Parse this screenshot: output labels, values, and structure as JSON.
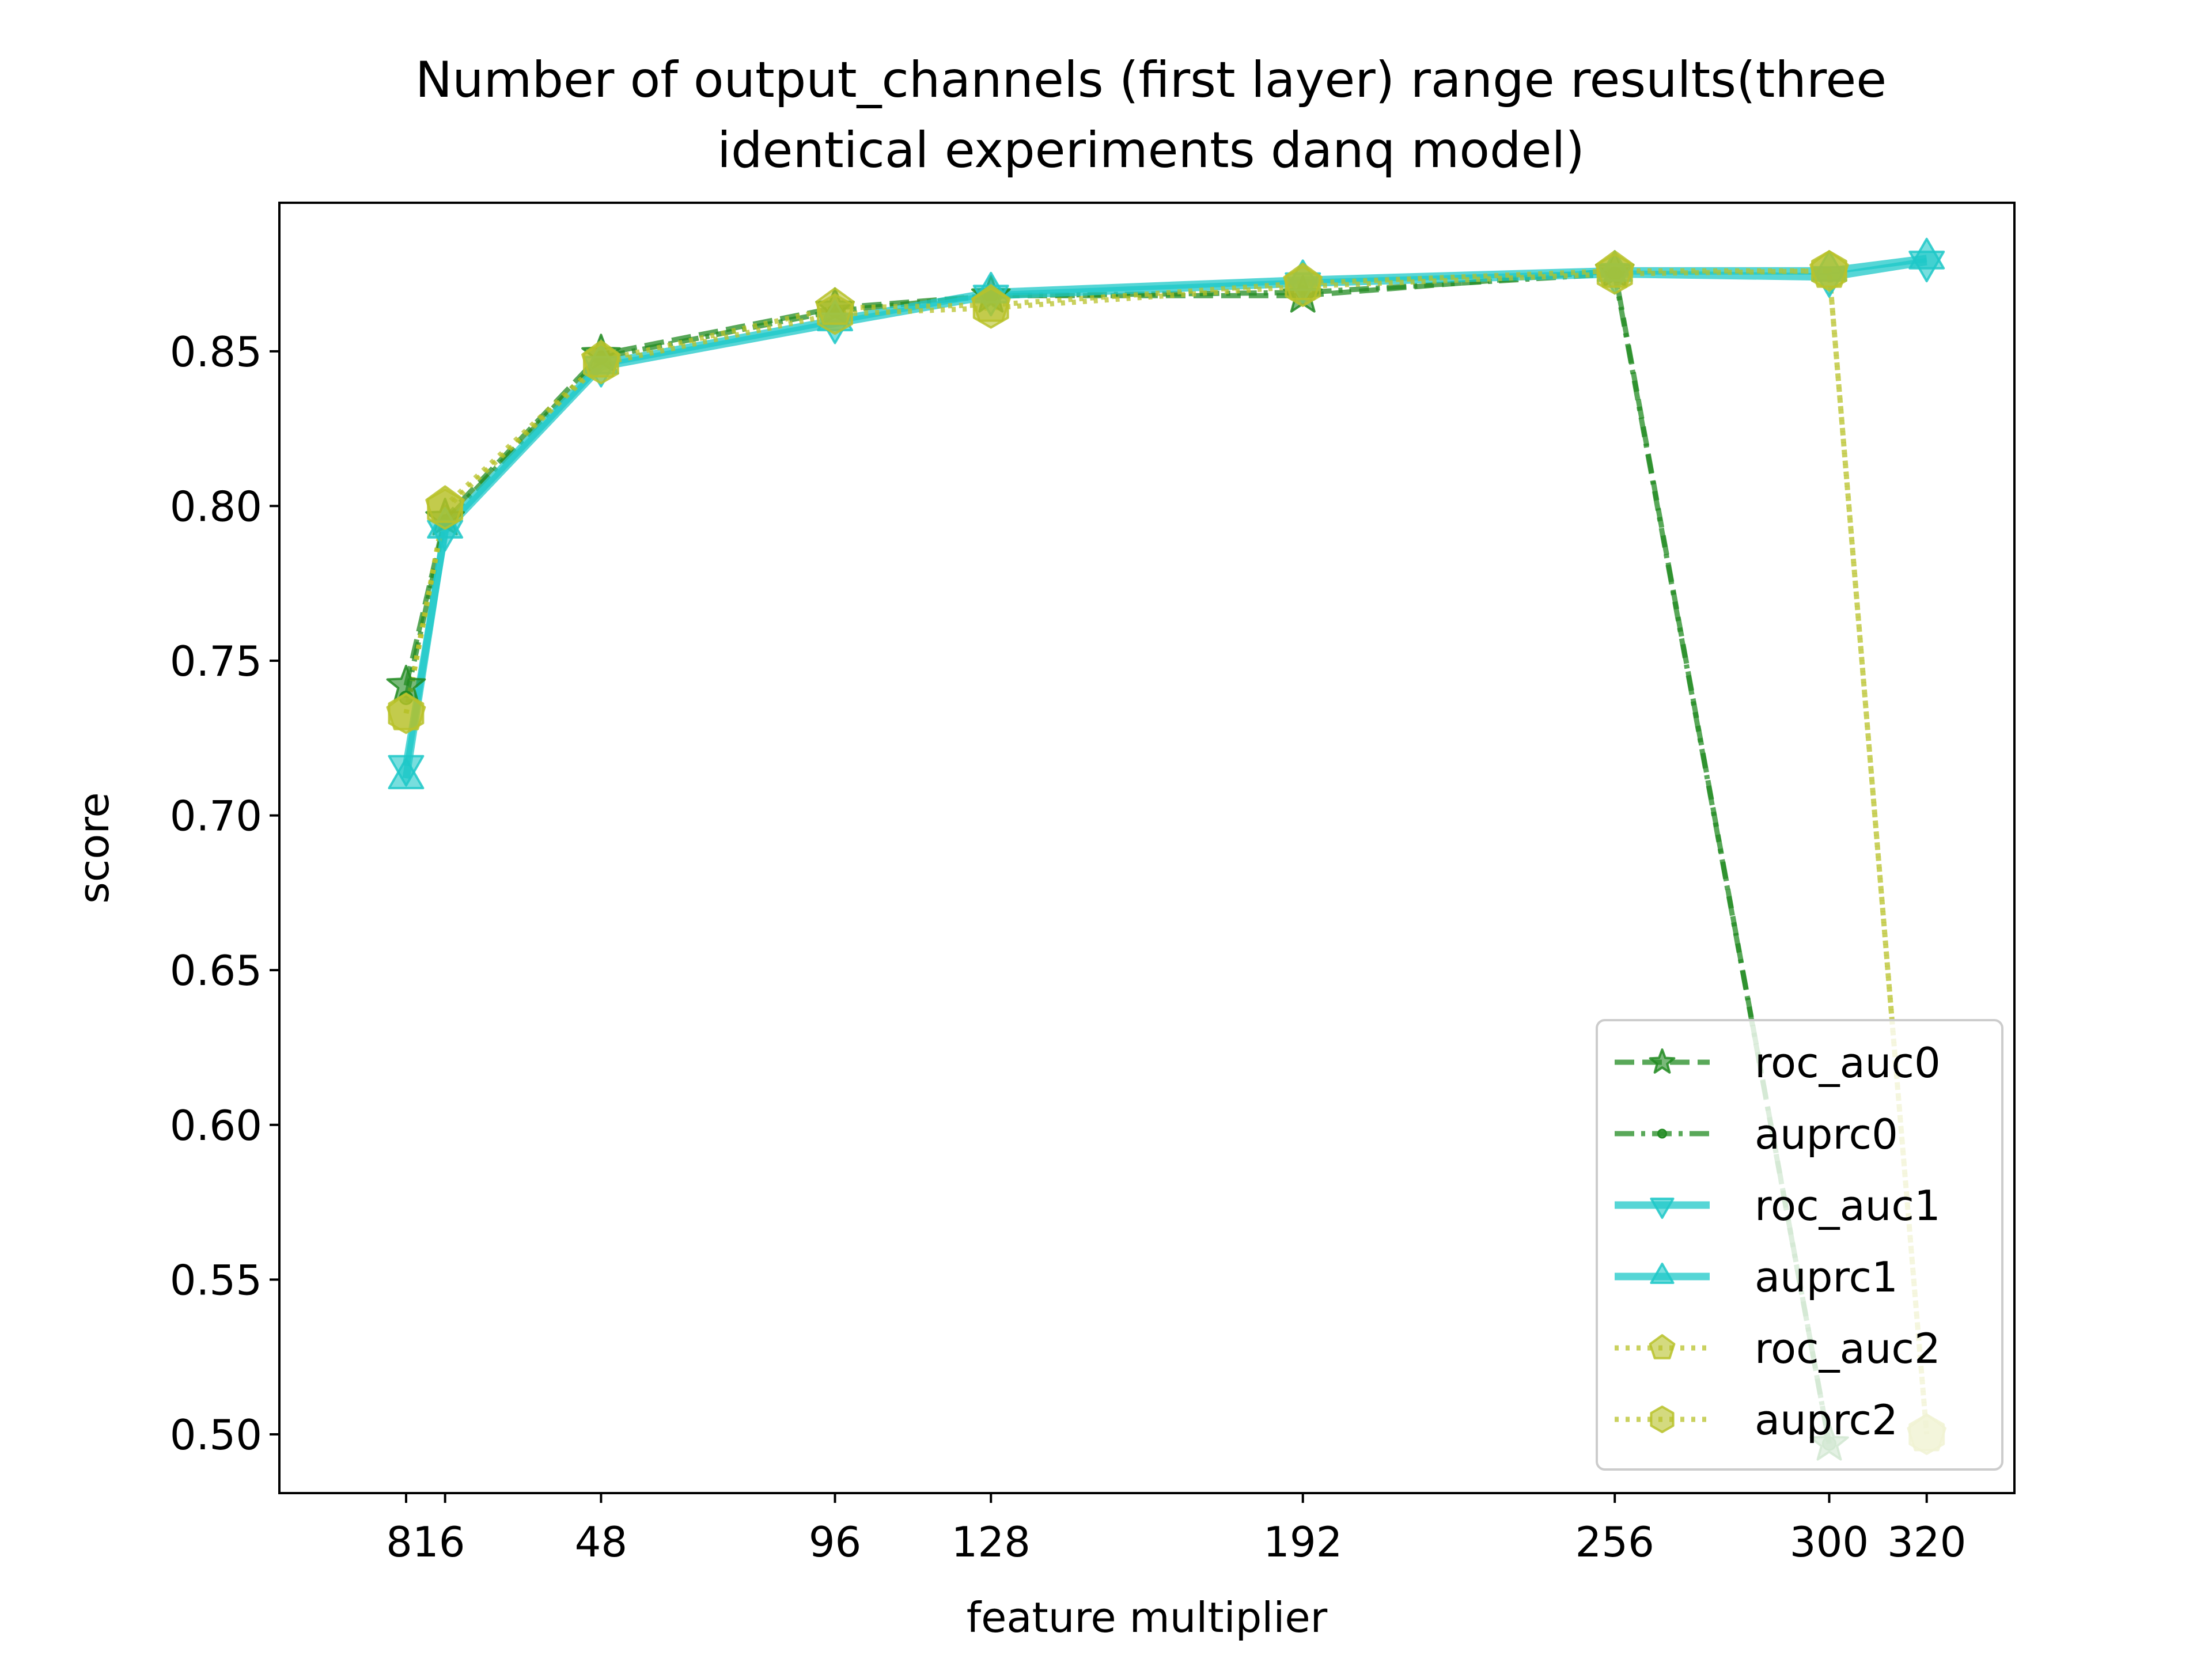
{
  "chart_data": {
    "type": "line",
    "title": "Number of output_channels (first layer) range results(three",
    "title_line2": "identical experiments danq model)",
    "xlabel": "feature multiplier",
    "ylabel": "score",
    "xlim": [
      -18,
      338
    ],
    "ylim": [
      0.481,
      0.898
    ],
    "x_ticks": [
      8,
      16,
      48,
      96,
      128,
      192,
      256,
      300,
      320
    ],
    "x_tick_labels": [
      "816",
      "48",
      "96",
      "128",
      "192",
      "256",
      "300",
      "320"
    ],
    "x_tick_label_positions": [
      12,
      48,
      96,
      128,
      192,
      256,
      300,
      320
    ],
    "y_ticks": [
      0.5,
      0.55,
      0.6,
      0.65,
      0.7,
      0.75,
      0.8,
      0.85
    ],
    "y_tick_labels": [
      "0.50",
      "0.55",
      "0.60",
      "0.65",
      "0.70",
      "0.75",
      "0.80",
      "0.85"
    ],
    "legend_position": "lower-right",
    "series": [
      {
        "name": "roc_auc0",
        "color": "#228b22",
        "linestyle": "dashed",
        "marker": "star",
        "x": [
          8,
          16,
          48,
          96,
          128,
          192,
          256,
          300
        ],
        "y": [
          0.742,
          0.796,
          0.849,
          0.864,
          0.868,
          0.868,
          0.876,
          0.497
        ]
      },
      {
        "name": "auprc0",
        "color": "#228b22",
        "linestyle": "dashdot",
        "marker": "circle",
        "x": [
          8,
          16,
          48,
          96,
          128,
          192,
          256,
          300
        ],
        "y": [
          0.738,
          0.795,
          0.848,
          0.863,
          0.868,
          0.869,
          0.875,
          0.497
        ]
      },
      {
        "name": "roc_auc1",
        "color": "#1ec8c8",
        "linestyle": "solid",
        "marker": "triangle-down",
        "x": [
          8,
          16,
          48,
          96,
          128,
          192,
          256,
          300,
          320
        ],
        "y": [
          0.716,
          0.792,
          0.845,
          0.859,
          0.868,
          0.872,
          0.875,
          0.874,
          0.879
        ]
      },
      {
        "name": "auprc1",
        "color": "#1ec8c8",
        "linestyle": "solid",
        "marker": "triangle-up",
        "x": [
          8,
          16,
          48,
          96,
          128,
          192,
          256,
          300,
          320
        ],
        "y": [
          0.712,
          0.793,
          0.846,
          0.86,
          0.869,
          0.873,
          0.876,
          0.876,
          0.88
        ]
      },
      {
        "name": "roc_auc2",
        "color": "#b8c22a",
        "linestyle": "dotted",
        "marker": "pentagon",
        "x": [
          8,
          16,
          48,
          96,
          128,
          192,
          256,
          300,
          320
        ],
        "y": [
          0.733,
          0.8,
          0.847,
          0.864,
          0.865,
          0.872,
          0.876,
          0.876,
          0.5
        ]
      },
      {
        "name": "auprc2",
        "color": "#b8c22a",
        "linestyle": "dotted",
        "marker": "hexagon",
        "x": [
          8,
          16,
          48,
          96,
          128,
          192,
          256,
          300,
          320
        ],
        "y": [
          0.733,
          0.799,
          0.846,
          0.862,
          0.864,
          0.871,
          0.875,
          0.876,
          0.5
        ]
      }
    ]
  }
}
